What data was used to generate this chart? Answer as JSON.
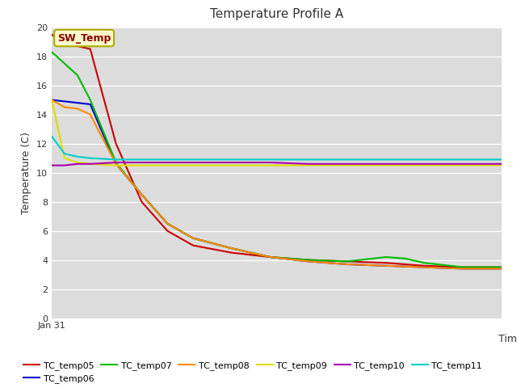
{
  "title": "Temperature Profile A",
  "xlabel": "Time",
  "ylabel": "Temperature (C)",
  "ylim": [
    0,
    20
  ],
  "yticks": [
    0,
    2,
    4,
    6,
    8,
    10,
    12,
    14,
    16,
    18,
    20
  ],
  "xstart_label": "Jan 31",
  "plot_bg_color": "#dcdcdc",
  "fig_bg_color": "#ffffff",
  "series": {
    "TC_temp05": {
      "color": "#cc0000",
      "points": [
        [
          0,
          19.5
        ],
        [
          2,
          18.8
        ],
        [
          4,
          18.7
        ],
        [
          6,
          18.5
        ],
        [
          10,
          12.0
        ],
        [
          14,
          8.0
        ],
        [
          18,
          6.0
        ],
        [
          22,
          5.0
        ],
        [
          28,
          4.5
        ],
        [
          34,
          4.2
        ],
        [
          40,
          4.0
        ],
        [
          46,
          3.9
        ],
        [
          52,
          3.8
        ],
        [
          58,
          3.6
        ],
        [
          64,
          3.5
        ],
        [
          70,
          3.5
        ]
      ]
    },
    "TC_temp06": {
      "color": "#0000cc",
      "points": [
        [
          0,
          15.0
        ],
        [
          2,
          14.9
        ],
        [
          4,
          14.8
        ],
        [
          6,
          14.7
        ],
        [
          10,
          10.6
        ],
        [
          14,
          8.5
        ],
        [
          18,
          6.5
        ],
        [
          22,
          5.5
        ],
        [
          28,
          4.8
        ],
        [
          34,
          4.2
        ],
        [
          40,
          3.9
        ],
        [
          46,
          3.7
        ],
        [
          52,
          3.6
        ],
        [
          58,
          3.5
        ],
        [
          64,
          3.4
        ],
        [
          70,
          3.4
        ]
      ]
    },
    "TC_temp07": {
      "color": "#00bb00",
      "points": [
        [
          0,
          18.3
        ],
        [
          2,
          17.5
        ],
        [
          4,
          16.7
        ],
        [
          6,
          15.0
        ],
        [
          10,
          10.7
        ],
        [
          14,
          8.5
        ],
        [
          18,
          6.5
        ],
        [
          22,
          5.5
        ],
        [
          28,
          4.8
        ],
        [
          34,
          4.2
        ],
        [
          40,
          4.0
        ],
        [
          46,
          3.9
        ],
        [
          52,
          4.2
        ],
        [
          55,
          4.1
        ],
        [
          58,
          3.8
        ],
        [
          64,
          3.5
        ],
        [
          70,
          3.5
        ]
      ]
    },
    "TC_temp08": {
      "color": "#ff8800",
      "points": [
        [
          0,
          15.0
        ],
        [
          2,
          14.5
        ],
        [
          4,
          14.4
        ],
        [
          6,
          14.0
        ],
        [
          10,
          10.6
        ],
        [
          14,
          8.5
        ],
        [
          18,
          6.5
        ],
        [
          22,
          5.5
        ],
        [
          28,
          4.8
        ],
        [
          34,
          4.2
        ],
        [
          40,
          3.9
        ],
        [
          46,
          3.7
        ],
        [
          52,
          3.6
        ],
        [
          58,
          3.5
        ],
        [
          64,
          3.4
        ],
        [
          70,
          3.4
        ]
      ]
    },
    "TC_temp09": {
      "color": "#dddd00",
      "points": [
        [
          0,
          15.0
        ],
        [
          2,
          11.0
        ],
        [
          4,
          10.7
        ],
        [
          6,
          10.6
        ],
        [
          10,
          10.5
        ],
        [
          14,
          10.5
        ],
        [
          18,
          10.5
        ],
        [
          22,
          10.5
        ],
        [
          28,
          10.5
        ],
        [
          34,
          10.5
        ],
        [
          40,
          10.5
        ],
        [
          46,
          10.5
        ],
        [
          52,
          10.5
        ],
        [
          58,
          10.5
        ],
        [
          64,
          10.5
        ],
        [
          70,
          10.5
        ]
      ]
    },
    "TC_temp10": {
      "color": "#aa00aa",
      "points": [
        [
          0,
          10.5
        ],
        [
          2,
          10.5
        ],
        [
          4,
          10.6
        ],
        [
          6,
          10.6
        ],
        [
          10,
          10.7
        ],
        [
          14,
          10.7
        ],
        [
          18,
          10.7
        ],
        [
          22,
          10.7
        ],
        [
          28,
          10.7
        ],
        [
          34,
          10.7
        ],
        [
          40,
          10.6
        ],
        [
          46,
          10.6
        ],
        [
          52,
          10.6
        ],
        [
          58,
          10.6
        ],
        [
          64,
          10.6
        ],
        [
          70,
          10.6
        ]
      ]
    },
    "TC_temp11": {
      "color": "#00cccc",
      "points": [
        [
          0,
          12.5
        ],
        [
          2,
          11.3
        ],
        [
          4,
          11.1
        ],
        [
          6,
          11.0
        ],
        [
          10,
          10.9
        ],
        [
          14,
          10.9
        ],
        [
          18,
          10.9
        ],
        [
          22,
          10.9
        ],
        [
          28,
          10.9
        ],
        [
          34,
          10.9
        ],
        [
          40,
          10.9
        ],
        [
          46,
          10.9
        ],
        [
          52,
          10.9
        ],
        [
          58,
          10.9
        ],
        [
          64,
          10.9
        ],
        [
          70,
          10.9
        ]
      ]
    }
  },
  "legend_order": [
    "TC_temp05",
    "TC_temp06",
    "TC_temp07",
    "TC_temp08",
    "TC_temp09",
    "TC_temp10",
    "TC_temp11"
  ],
  "sw_temp_annotation": {
    "text": "SW_Temp",
    "text_color": "#8b0000",
    "box_facecolor": "#ffffcc",
    "box_edgecolor": "#aaaa00",
    "fontsize": 9
  }
}
